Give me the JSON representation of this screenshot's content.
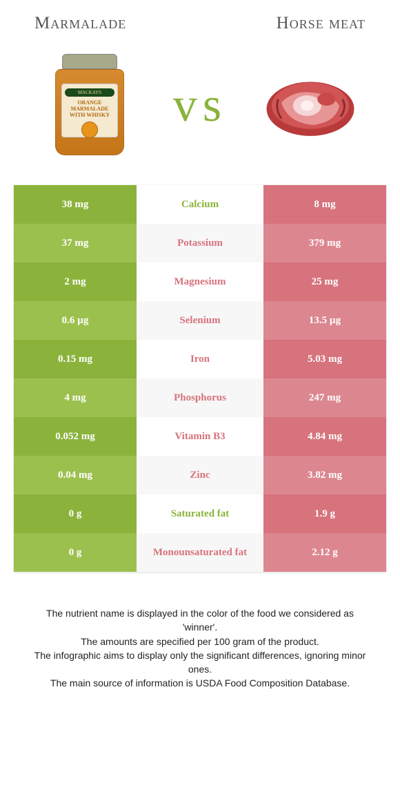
{
  "header": {
    "left_title": "Marmalade",
    "right_title": "Horse meat"
  },
  "vs_text": "vs",
  "colors": {
    "left_food": "#8bb33b",
    "right_food": "#d7737d",
    "left_alt": "#9cc04e",
    "right_alt": "#dc8690",
    "mid_bg_even": "#ffffff",
    "mid_bg_odd": "#f7f7f7",
    "vs_color": "#8bb33b"
  },
  "jar": {
    "brand": "MACKAYS",
    "label_line1": "ORANGE",
    "label_line2": "MARMALADE",
    "label_line3": "WITH WHISKY"
  },
  "rows": [
    {
      "nutrient": "Calcium",
      "left": "38 mg",
      "right": "8 mg",
      "winner": "left"
    },
    {
      "nutrient": "Potassium",
      "left": "37 mg",
      "right": "379 mg",
      "winner": "right"
    },
    {
      "nutrient": "Magnesium",
      "left": "2 mg",
      "right": "25 mg",
      "winner": "right"
    },
    {
      "nutrient": "Selenium",
      "left": "0.6 µg",
      "right": "13.5 µg",
      "winner": "right"
    },
    {
      "nutrient": "Iron",
      "left": "0.15 mg",
      "right": "5.03 mg",
      "winner": "right"
    },
    {
      "nutrient": "Phosphorus",
      "left": "4 mg",
      "right": "247 mg",
      "winner": "right"
    },
    {
      "nutrient": "Vitamin B3",
      "left": "0.052 mg",
      "right": "4.84 mg",
      "winner": "right"
    },
    {
      "nutrient": "Zinc",
      "left": "0.04 mg",
      "right": "3.82 mg",
      "winner": "right"
    },
    {
      "nutrient": "Saturated fat",
      "left": "0 g",
      "right": "1.9 g",
      "winner": "left"
    },
    {
      "nutrient": "Monounsaturated fat",
      "left": "0 g",
      "right": "2.12 g",
      "winner": "right"
    }
  ],
  "footer": {
    "line1": "The nutrient name is displayed in the color of the food we considered as 'winner'.",
    "line2": "The amounts are specified per 100 gram of the product.",
    "line3": "The infographic aims to display only the significant differences, ignoring minor ones.",
    "line4": "The main source of information is USDA Food Composition Database."
  }
}
